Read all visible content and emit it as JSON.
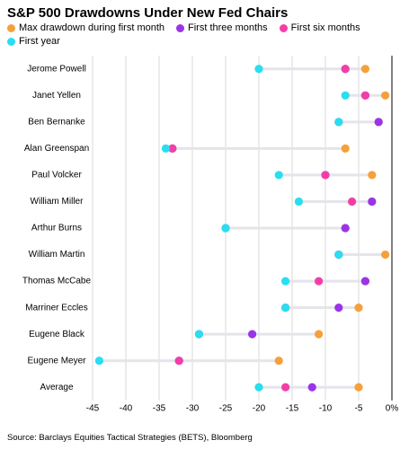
{
  "chart_data": {
    "type": "dot",
    "title": "S&P 500 Drawdowns Under New Fed Chairs",
    "source": "Source: Barclays Equities Tactical Strategies (BETS), Bloomberg",
    "categories": [
      "Jerome Powell",
      "Janet Yellen",
      "Ben Bernanke",
      "Alan Greenspan",
      "Paul Volcker",
      "William Miller",
      "Arthur Burns",
      "William Martin",
      "Thomas McCabe",
      "Marriner Eccles",
      "Eugene Black",
      "Eugene Meyer",
      "Average"
    ],
    "series": [
      {
        "name": "Max drawdown during first month",
        "color": "#f5a03a",
        "values": [
          -4,
          -1,
          -2,
          -7,
          -3,
          -3,
          -7,
          -1,
          -4,
          -5,
          -11,
          -17,
          -5
        ]
      },
      {
        "name": "First three months",
        "color": "#9b34e8",
        "values": [
          -7,
          -4,
          -2,
          -33,
          -10,
          -3,
          -7,
          -8,
          -4,
          -8,
          -21,
          -32,
          -12
        ]
      },
      {
        "name": "First six months",
        "color": "#f23fa8",
        "values": [
          -7,
          -4,
          -8,
          -33,
          -10,
          -6,
          -25,
          -8,
          -11,
          -16,
          -29,
          -32,
          -16
        ]
      },
      {
        "name": "First year",
        "color": "#29def0",
        "values": [
          -20,
          -7,
          -8,
          -34,
          -17,
          -14,
          -25,
          -8,
          -16,
          -16,
          -29,
          -44,
          -20
        ]
      }
    ],
    "xlim": [
      -46,
      0.5
    ],
    "xticks": [
      -45,
      -40,
      -35,
      -30,
      -25,
      -20,
      -15,
      -10,
      -5,
      {
        "value": 0,
        "label": "0%"
      }
    ],
    "grid": true
  }
}
